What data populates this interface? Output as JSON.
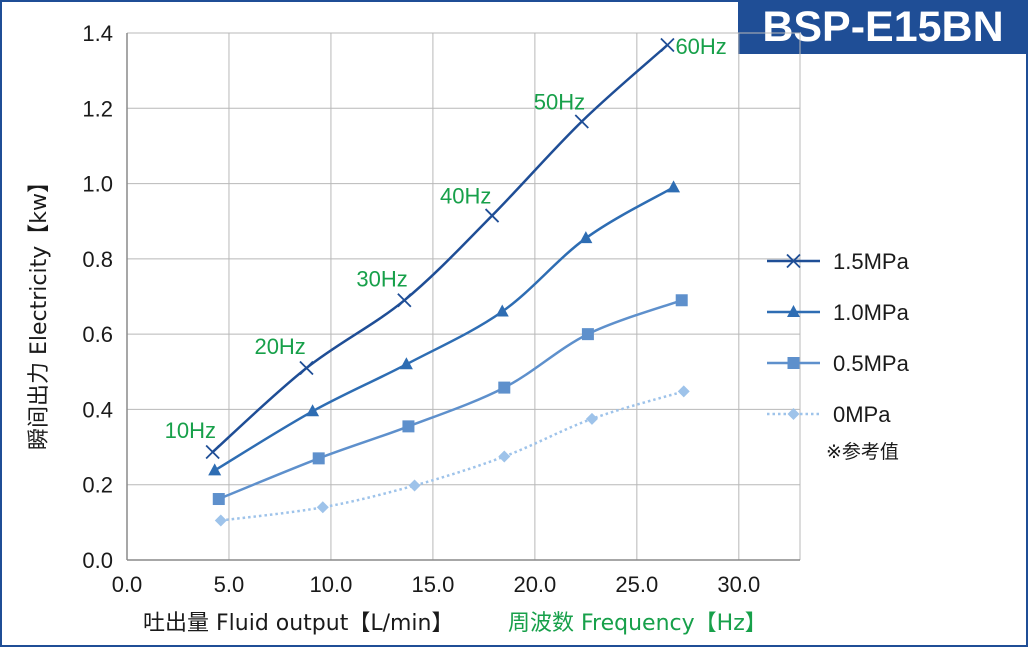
{
  "badge": "BSP-E15BN",
  "chart_data": {
    "type": "line",
    "title": "",
    "xlabel": "吐出量 Fluid output【L/min】",
    "xlabel_secondary": "周波数 Frequency【Hz】",
    "ylabel": "瞬间出力 Electricity【kw】",
    "xlim": [
      0,
      33
    ],
    "ylim": [
      0,
      1.4
    ],
    "x_ticks": [
      "0.0",
      "5.0",
      "10.0",
      "15.0",
      "20.0",
      "25.0",
      "30.0"
    ],
    "y_ticks": [
      "0.0",
      "0.2",
      "0.4",
      "0.6",
      "0.8",
      "1.0",
      "1.2",
      "1.4"
    ],
    "grid": true,
    "legend_position": "right",
    "series": [
      {
        "name": "1.5MPa",
        "color": "#1f4e96",
        "marker": "x",
        "style": "solid",
        "x": [
          4.2,
          8.8,
          13.6,
          17.9,
          22.3,
          26.5
        ],
        "y": [
          0.287,
          0.51,
          0.69,
          0.915,
          1.165,
          1.368
        ]
      },
      {
        "name": "1.0MPa",
        "color": "#2e6db3",
        "marker": "triangle",
        "style": "solid",
        "x": [
          4.3,
          9.1,
          13.7,
          18.4,
          22.5,
          26.8
        ],
        "y": [
          0.238,
          0.395,
          0.52,
          0.66,
          0.855,
          0.99
        ]
      },
      {
        "name": "0.5MPa",
        "color": "#5e90cc",
        "marker": "square",
        "style": "solid",
        "x": [
          4.5,
          9.4,
          13.8,
          18.5,
          22.6,
          27.2
        ],
        "y": [
          0.162,
          0.27,
          0.355,
          0.458,
          0.6,
          0.69
        ]
      },
      {
        "name": "0MPa",
        "color": "#9ec3ea",
        "marker": "diamond",
        "style": "dotted",
        "x": [
          4.6,
          9.6,
          14.1,
          18.5,
          22.8,
          27.3
        ],
        "y": [
          0.105,
          0.14,
          0.198,
          0.275,
          0.375,
          0.448
        ]
      }
    ],
    "annotations": [
      {
        "text": "10Hz",
        "x": 4.2,
        "y": 0.287
      },
      {
        "text": "20Hz",
        "x": 8.8,
        "y": 0.51
      },
      {
        "text": "30Hz",
        "x": 13.6,
        "y": 0.69
      },
      {
        "text": "40Hz",
        "x": 17.9,
        "y": 0.915
      },
      {
        "text": "50Hz",
        "x": 22.3,
        "y": 1.165
      },
      {
        "text": "60Hz",
        "x": 26.5,
        "y": 1.368
      }
    ],
    "legend_note": "※参考值"
  }
}
